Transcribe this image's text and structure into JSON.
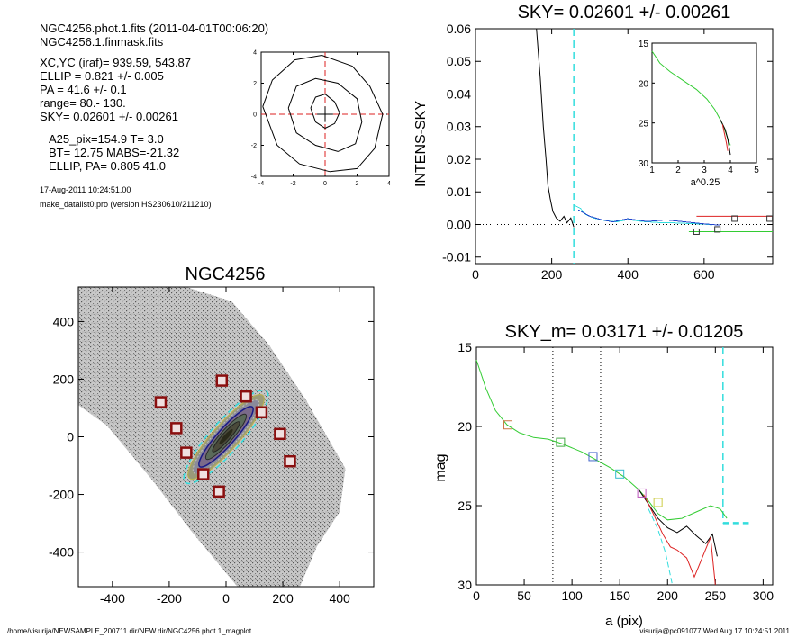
{
  "header": {
    "lines1": [
      "NGC4256.phot.1.fits  (2011-04-01T00:06:20)",
      "NGC4256.1.finmask.fits"
    ],
    "lines2": [
      "XC,YC (iraf)=   939.59, 543.87",
      "ELLIP = 0.821 +/- 0.005",
      "PA    =  41.6 +/-   0.1",
      "range=   80.-  130.",
      "SKY= 0.02601 +/- 0.00261"
    ],
    "lines3": [
      "A25_pix=154.9   T= 3.0",
      "BT=  12.75   MABS=-21.32",
      "ELLIP, PA= 0.805   41.0"
    ],
    "date": "17-Aug-2011 10:24:51.00",
    "prog": "make_datalist0.pro (version HS230610/211210)"
  },
  "footer": {
    "left": "/home/visurija/NEWSAMPLE_200711.dir/NEW.dir/NGC4256.phot.1_magplot",
    "right": "visurija@pc091077  Wed Aug 17 10:24:51 2011"
  },
  "colors": {
    "cyan": "#33dddd",
    "red": "#dd2222",
    "green": "#33cc33",
    "blue": "#2244cc",
    "darkred": "#8a0e0e"
  },
  "chart_data": [
    {
      "id": "contour",
      "type": "contour",
      "title": "",
      "xlim": [
        -4,
        4
      ],
      "ylim": [
        -4,
        4
      ],
      "xticks": [
        -4,
        -2,
        0,
        2,
        4
      ],
      "yticks": [
        -4,
        -2,
        0,
        2,
        4
      ],
      "contours": [
        [
          [
            -0.9,
            0.4
          ],
          [
            -0.6,
            1.1
          ],
          [
            0,
            1.3
          ],
          [
            0.6,
            0.8
          ],
          [
            0.9,
            0.1
          ],
          [
            0.6,
            -0.6
          ],
          [
            0,
            -0.9
          ],
          [
            -0.6,
            -0.5
          ],
          [
            -0.9,
            0.4
          ]
        ],
        [
          [
            -2.3,
            0.4
          ],
          [
            -1.8,
            1.8
          ],
          [
            -0.6,
            2.3
          ],
          [
            0.8,
            2.0
          ],
          [
            2.0,
            1.0
          ],
          [
            2.3,
            -0.5
          ],
          [
            1.9,
            -1.9
          ],
          [
            0.8,
            -2.4
          ],
          [
            -0.6,
            -2.0
          ],
          [
            -1.8,
            -1.2
          ],
          [
            -2.3,
            0.4
          ]
        ],
        [
          [
            -3.9,
            0.5
          ],
          [
            -3.3,
            2.2
          ],
          [
            -1.9,
            3.5
          ],
          [
            -0.2,
            3.8
          ],
          [
            1.7,
            3.1
          ],
          [
            2.8,
            1.8
          ],
          [
            3.6,
            0.0
          ],
          [
            3.1,
            -2.2
          ],
          [
            2.0,
            -3.5
          ],
          [
            0.3,
            -3.7
          ],
          [
            -1.6,
            -3.2
          ],
          [
            -3.0,
            -2.0
          ],
          [
            -3.9,
            0.5
          ]
        ]
      ]
    },
    {
      "id": "sky",
      "type": "line",
      "title": "SKY= 0.02601 +/- 0.00261",
      "xlabel": "",
      "ylabel": "INTENS-SKY",
      "xlim": [
        0,
        780
      ],
      "ylim": [
        -0.012,
        0.06
      ],
      "xticks": [
        0,
        200,
        400,
        600
      ],
      "yticks": [
        -0.01,
        0.0,
        0.01,
        0.02,
        0.03,
        0.04,
        0.05,
        0.06
      ],
      "ytick_labels": [
        "-0.01",
        "0.00",
        "0.01",
        "0.02",
        "0.03",
        "0.04",
        "0.05",
        "0.06"
      ],
      "vline_x": 258,
      "series": [
        {
          "color": "black",
          "points": [
            [
              160,
              0.06
            ],
            [
              170,
              0.045
            ],
            [
              178,
              0.03
            ],
            [
              185,
              0.02
            ],
            [
              190,
              0.012
            ],
            [
              196,
              0.008
            ],
            [
              203,
              0.004
            ],
            [
              212,
              0.002
            ],
            [
              222,
              0.001
            ],
            [
              232,
              0.0025
            ],
            [
              240,
              0.0005
            ],
            [
              250,
              0.002
            ],
            [
              258,
              -0.0008
            ]
          ]
        },
        {
          "color": "cyan",
          "points": [
            [
              258,
              0.006
            ],
            [
              275,
              0.005
            ],
            [
              290,
              0.003
            ],
            [
              310,
              0.002
            ],
            [
              340,
              0.0012
            ],
            [
              370,
              0.0008
            ],
            [
              400,
              0.0015
            ],
            [
              440,
              0.0009
            ],
            [
              480,
              0.0006
            ],
            [
              520,
              0.0005
            ],
            [
              560,
              0.0003
            ],
            [
              600,
              0.0001
            ],
            [
              620,
              -0.0001
            ]
          ]
        },
        {
          "color": "blue",
          "points": [
            [
              270,
              0.0045
            ],
            [
              300,
              0.0025
            ],
            [
              330,
              0.0015
            ],
            [
              360,
              0.0008
            ],
            [
              400,
              0.0018
            ],
            [
              450,
              0.0009
            ],
            [
              500,
              0.0014
            ],
            [
              550,
              0.0008
            ],
            [
              600,
              0.0002
            ],
            [
              640,
              -0.0002
            ]
          ]
        },
        {
          "color": "red",
          "points": [
            [
              580,
              0.0025
            ],
            [
              780,
              0.0025
            ]
          ]
        },
        {
          "color": "green",
          "points": [
            [
              560,
              -0.0022
            ],
            [
              780,
              -0.0022
            ]
          ]
        }
      ],
      "box_markers": [
        [
          580,
          -0.0022
        ],
        [
          635,
          -0.0015
        ],
        [
          680,
          0.0018
        ],
        [
          772,
          0.0018
        ]
      ],
      "inset": {
        "xlabel": "a^0.25",
        "xlim": [
          1,
          5
        ],
        "ylim": [
          15,
          30
        ],
        "xticks": [
          1,
          2,
          3,
          4,
          5
        ],
        "yticks": [
          15,
          20,
          25,
          30
        ],
        "series": [
          {
            "color": "green",
            "points": [
              [
                1.0,
                16.0
              ],
              [
                1.3,
                17.5
              ],
              [
                1.7,
                18.6
              ],
              [
                2.2,
                19.7
              ],
              [
                2.7,
                20.8
              ],
              [
                3.1,
                22.0
              ],
              [
                3.4,
                23.3
              ],
              [
                3.6,
                24.5
              ],
              [
                3.75,
                25.5
              ],
              [
                3.9,
                27.0
              ],
              [
                4.0,
                27.8
              ]
            ]
          },
          {
            "color": "black",
            "points": [
              [
                3.6,
                24.5
              ],
              [
                3.8,
                25.8
              ],
              [
                3.9,
                27.0
              ],
              [
                4.0,
                29.0
              ]
            ]
          },
          {
            "color": "red",
            "points": [
              [
                3.7,
                25.2
              ],
              [
                3.85,
                27.5
              ],
              [
                3.9,
                28.5
              ]
            ]
          }
        ]
      }
    },
    {
      "id": "image",
      "type": "image",
      "title": "NGC4256",
      "xlim": [
        -520,
        520
      ],
      "ylim": [
        -520,
        520
      ],
      "xticks": [
        -400,
        -200,
        0,
        200,
        400
      ],
      "yticks": [
        -400,
        -200,
        0,
        200,
        400
      ],
      "galaxy_center": [
        0,
        0
      ],
      "galaxy_pa_deg": 41.6,
      "box_markers": [
        [
          -230,
          120
        ],
        [
          -175,
          30
        ],
        [
          -140,
          -55
        ],
        [
          -80,
          -130
        ],
        [
          -15,
          195
        ],
        [
          70,
          140
        ],
        [
          125,
          85
        ],
        [
          190,
          10
        ],
        [
          225,
          -85
        ],
        [
          -25,
          -190
        ]
      ]
    },
    {
      "id": "mag",
      "type": "line",
      "title": "SKY_m=  0.03171 +/- 0.01205",
      "xlabel": "a (pix)",
      "ylabel": "mag",
      "xlim": [
        0,
        310
      ],
      "ylim": [
        30,
        15
      ],
      "xticks": [
        0,
        50,
        100,
        150,
        200,
        250,
        300
      ],
      "yticks": [
        15,
        20,
        25,
        30
      ],
      "dotted_vlines": [
        80,
        130
      ],
      "cyan_vline_x": 258,
      "cyan_hline": {
        "y": 26.1,
        "x": [
          258,
          285
        ]
      },
      "series": [
        {
          "color": "green",
          "points": [
            [
              0,
              15.8
            ],
            [
              10,
              17.6
            ],
            [
              20,
              19.0
            ],
            [
              32,
              19.9
            ],
            [
              45,
              20.4
            ],
            [
              60,
              20.7
            ],
            [
              75,
              20.8
            ],
            [
              90,
              21.1
            ],
            [
              110,
              21.6
            ],
            [
              125,
              22.1
            ],
            [
              140,
              22.6
            ],
            [
              155,
              23.2
            ],
            [
              170,
              24.0
            ],
            [
              180,
              24.7
            ],
            [
              190,
              25.5
            ],
            [
              200,
              25.9
            ],
            [
              215,
              25.8
            ],
            [
              230,
              25.4
            ],
            [
              245,
              25.0
            ],
            [
              255,
              25.2
            ],
            [
              262,
              25.8
            ]
          ]
        },
        {
          "color": "black",
          "points": [
            [
              170,
              24.0
            ],
            [
              180,
              24.9
            ],
            [
              190,
              25.8
            ],
            [
              200,
              26.4
            ],
            [
              210,
              26.7
            ],
            [
              220,
              26.3
            ],
            [
              230,
              26.9
            ],
            [
              240,
              27.4
            ],
            [
              247,
              26.8
            ],
            [
              252,
              28.2
            ]
          ]
        },
        {
          "color": "red",
          "points": [
            [
              175,
              24.3
            ],
            [
              185,
              25.5
            ],
            [
              195,
              26.8
            ],
            [
              203,
              27.6
            ],
            [
              210,
              27.8
            ],
            [
              220,
              28.3
            ],
            [
              228,
              29.5
            ],
            [
              245,
              27.0
            ],
            [
              250,
              30.0
            ]
          ]
        },
        {
          "color": "cyan",
          "points": [
            [
              180,
              25.2
            ],
            [
              190,
              26.5
            ],
            [
              198,
              28.0
            ],
            [
              205,
              30.0
            ]
          ]
        }
      ],
      "box_markers": [
        {
          "x": 33,
          "y": 19.9,
          "c": "#cc7744"
        },
        {
          "x": 88,
          "y": 21.0,
          "c": "#44aa44"
        },
        {
          "x": 122,
          "y": 21.9,
          "c": "#4466cc"
        },
        {
          "x": 150,
          "y": 23.0,
          "c": "#33bbcc"
        },
        {
          "x": 173,
          "y": 24.2,
          "c": "#bb55bb"
        },
        {
          "x": 190,
          "y": 24.8,
          "c": "#cccc44"
        }
      ]
    }
  ]
}
